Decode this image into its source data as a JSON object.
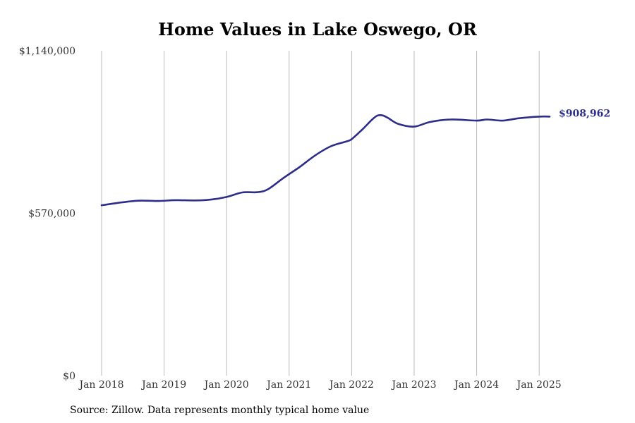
{
  "chart_data": {
    "type": "line",
    "title": "Home Values in Lake Oswego, OR",
    "xlabel": "",
    "ylabel": "",
    "source": "Source: Zillow. Data represents monthly typical home value",
    "ylim": [
      0,
      1140000
    ],
    "y_ticks": [
      {
        "value": 0,
        "label": "$0"
      },
      {
        "value": 570000,
        "label": "$570,000"
      },
      {
        "value": 1140000,
        "label": "$1,140,000"
      }
    ],
    "x_ticks": [
      {
        "value": "2018-01",
        "label": "Jan 2018"
      },
      {
        "value": "2019-01",
        "label": "Jan 2019"
      },
      {
        "value": "2020-01",
        "label": "Jan 2020"
      },
      {
        "value": "2021-01",
        "label": "Jan 2021"
      },
      {
        "value": "2022-01",
        "label": "Jan 2022"
      },
      {
        "value": "2023-01",
        "label": "Jan 2023"
      },
      {
        "value": "2024-01",
        "label": "Jan 2024"
      },
      {
        "value": "2025-01",
        "label": "Jan 2025"
      }
    ],
    "xlim": [
      "2018-01",
      "2025-04"
    ],
    "grid": "vertical",
    "line_color": "#2e2e8a",
    "end_label": "$908,962",
    "series": [
      {
        "values": [
          {
            "x": "2018-01",
            "y": 598000
          },
          {
            "x": "2018-04",
            "y": 606000
          },
          {
            "x": "2018-08",
            "y": 614000
          },
          {
            "x": "2018-12",
            "y": 613000
          },
          {
            "x": "2019-03",
            "y": 616000
          },
          {
            "x": "2019-07",
            "y": 615000
          },
          {
            "x": "2019-10",
            "y": 618000
          },
          {
            "x": "2020-01",
            "y": 627000
          },
          {
            "x": "2020-04",
            "y": 643000
          },
          {
            "x": "2020-07",
            "y": 644000
          },
          {
            "x": "2020-09",
            "y": 655000
          },
          {
            "x": "2020-12",
            "y": 695000
          },
          {
            "x": "2021-03",
            "y": 732000
          },
          {
            "x": "2021-06",
            "y": 773000
          },
          {
            "x": "2021-09",
            "y": 805000
          },
          {
            "x": "2021-12",
            "y": 822000
          },
          {
            "x": "2022-01",
            "y": 830000
          },
          {
            "x": "2022-03",
            "y": 863000
          },
          {
            "x": "2022-05",
            "y": 900000
          },
          {
            "x": "2022-06",
            "y": 913000
          },
          {
            "x": "2022-07",
            "y": 913000
          },
          {
            "x": "2022-08",
            "y": 904000
          },
          {
            "x": "2022-10",
            "y": 883000
          },
          {
            "x": "2023-01",
            "y": 874000
          },
          {
            "x": "2023-04",
            "y": 890000
          },
          {
            "x": "2023-08",
            "y": 899000
          },
          {
            "x": "2024-01",
            "y": 895000
          },
          {
            "x": "2024-03",
            "y": 899000
          },
          {
            "x": "2024-06",
            "y": 895000
          },
          {
            "x": "2024-09",
            "y": 903000
          },
          {
            "x": "2025-01",
            "y": 908962
          },
          {
            "x": "2025-03",
            "y": 908962
          }
        ]
      }
    ]
  }
}
